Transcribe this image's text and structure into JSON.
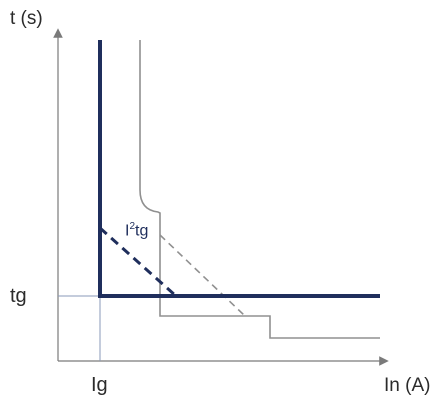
{
  "labels": {
    "y_axis": "t (s)",
    "x_axis": "In (A)",
    "tg": "tg",
    "ig": "Ig",
    "i2tg_base": "I",
    "i2tg_sup": "2",
    "i2tg_tail": "tg"
  },
  "colors": {
    "primary_curve": "#1f2e5c",
    "secondary_curve": "#909090",
    "axis": "#7a7a7a",
    "guide": "#8a9ab8"
  }
}
